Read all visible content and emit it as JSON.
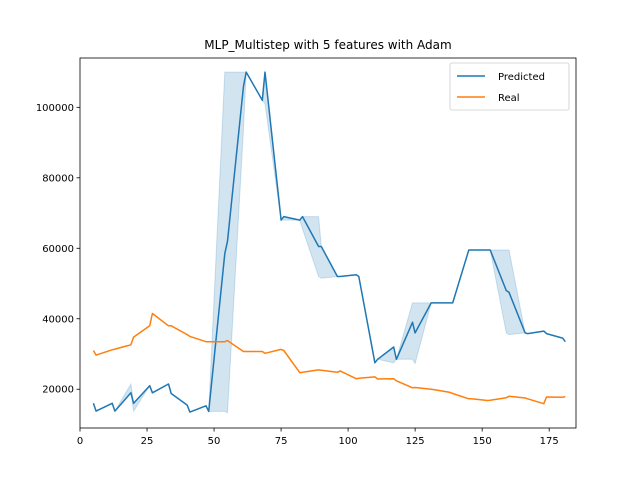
{
  "chart_data": {
    "type": "line",
    "title": "MLP_Multistep with 5 features with Adam",
    "xlabel": "",
    "ylabel": "",
    "xlim": [
      0,
      185
    ],
    "ylim": [
      9000,
      114000
    ],
    "xticks": [
      0,
      25,
      50,
      75,
      100,
      125,
      150,
      175
    ],
    "yticks": [
      20000,
      40000,
      60000,
      80000,
      100000
    ],
    "ytick_labels": [
      "20000",
      "40000",
      "60000",
      "80000",
      "100000"
    ],
    "xtick_labels": [
      "0",
      "25",
      "50",
      "75",
      "100",
      "125",
      "150",
      "175"
    ],
    "grid": false,
    "legend_position": "top-right",
    "colors": {
      "predicted": "#1f77b4",
      "real": "#ff7f0e",
      "band": "#1f77b4"
    },
    "series": [
      {
        "name": "Predicted",
        "x": [
          5,
          6,
          12,
          13,
          19,
          20,
          26,
          27,
          33,
          34,
          40,
          41,
          47,
          48,
          54,
          55,
          61,
          62,
          68,
          69,
          75,
          76,
          82,
          83,
          89,
          90,
          96,
          97,
          103,
          104,
          110,
          111,
          117,
          118,
          124,
          125,
          131,
          132,
          138,
          139,
          145,
          146,
          152,
          153,
          159,
          160,
          166,
          167,
          173,
          174,
          180,
          181
        ],
        "values": [
          16000,
          13800,
          16000,
          13800,
          19000,
          16000,
          21000,
          19000,
          21500,
          18800,
          15500,
          13500,
          15300,
          13700,
          58500,
          62000,
          106000,
          110000,
          102000,
          110000,
          68000,
          69000,
          68000,
          69000,
          60500,
          60500,
          52000,
          52000,
          52500,
          52000,
          27500,
          28500,
          32000,
          28500,
          39000,
          36000,
          44500,
          44500,
          44500,
          44500,
          59500,
          59500,
          59500,
          59500,
          48000,
          47500,
          36000,
          35800,
          36500,
          35800,
          34500,
          33500
        ],
        "lower": [
          16000,
          13800,
          16000,
          13800,
          19000,
          13800,
          21000,
          19000,
          21500,
          18800,
          15500,
          13500,
          15300,
          13700,
          13700,
          13300,
          94000,
          110000,
          102000,
          101000,
          68000,
          68000,
          68000,
          65500,
          52000,
          51500,
          52000,
          52000,
          52500,
          52000,
          27500,
          28500,
          27500,
          28500,
          28500,
          27300,
          44500,
          44500,
          44500,
          44500,
          59500,
          59500,
          59500,
          59500,
          36000,
          35500,
          36000,
          35800,
          36500,
          35800,
          34500,
          33500
        ],
        "upper": [
          16000,
          13800,
          16000,
          13800,
          21500,
          16000,
          21000,
          19000,
          21500,
          18800,
          15500,
          13500,
          15300,
          13700,
          110000,
          110000,
          110000,
          110000,
          102000,
          110000,
          68000,
          69000,
          68000,
          69000,
          69000,
          60500,
          52000,
          52000,
          52500,
          52000,
          27500,
          28500,
          32000,
          28500,
          44500,
          44500,
          44500,
          44500,
          44500,
          44500,
          59500,
          59500,
          59500,
          59500,
          59500,
          59500,
          36000,
          35800,
          36500,
          35800,
          34500,
          33500
        ]
      },
      {
        "name": "Real",
        "x": [
          5,
          6,
          12,
          13,
          19,
          20,
          26,
          27,
          33,
          34,
          40,
          41,
          47,
          48,
          54,
          55,
          61,
          62,
          68,
          69,
          75,
          76,
          82,
          83,
          89,
          90,
          96,
          97,
          103,
          104,
          110,
          111,
          117,
          118,
          124,
          125,
          131,
          132,
          138,
          139,
          145,
          146,
          152,
          153,
          159,
          160,
          166,
          167,
          173,
          174,
          180,
          181
        ],
        "values": [
          31000,
          29700,
          31200,
          31400,
          32600,
          34800,
          38000,
          41500,
          38000,
          38000,
          35500,
          35000,
          33500,
          33500,
          33500,
          33800,
          30700,
          30700,
          30700,
          30200,
          31300,
          31000,
          24700,
          24800,
          25500,
          25400,
          24800,
          25200,
          23000,
          23100,
          23500,
          22900,
          23000,
          22400,
          20400,
          20500,
          20000,
          19900,
          19100,
          18800,
          17300,
          17300,
          16800,
          16900,
          17600,
          18000,
          17500,
          17300,
          15900,
          17800,
          17700,
          17900
        ]
      }
    ]
  }
}
